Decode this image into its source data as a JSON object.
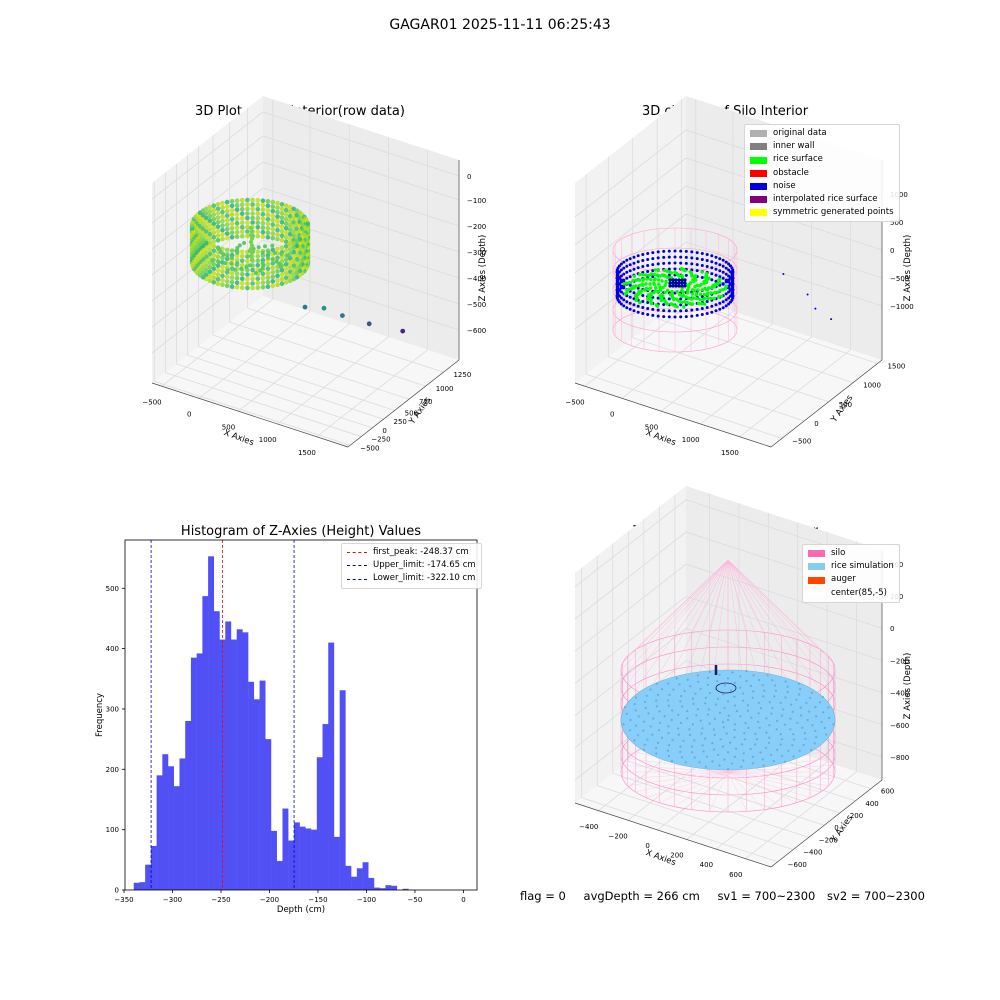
{
  "suptitle": "GAGAR01 2025-11-11 06:25:43",
  "colors": {
    "hist_bar": "#5050f5",
    "peak_line": "#ff0000",
    "limit_line": "#0000cc",
    "silo": "#ff69b4",
    "rice_sim": "#87cefa",
    "auger": "#ff4500",
    "rice_surface": "#00ff00",
    "noise": "#0000dd",
    "viridis_low": "#440154",
    "viridis_mid": "#21918c",
    "viridis_high": "#fde725"
  },
  "footer": {
    "flag": "flag = 0",
    "avg_depth": "avgDepth = 266 cm",
    "sv1": "sv1 = 700~2300",
    "sv2": "sv2 = 700~2300"
  },
  "chart_data": [
    {
      "type": "scatter",
      "projection": "3d",
      "title": "3D Plot of Silo Interior(row data)",
      "xlabel": "X Axies",
      "ylabel": "Y Axies",
      "zlabel": "Z Axies (Depth)",
      "xticks": [
        "−500",
        "0",
        "500",
        "1000",
        "1500"
      ],
      "yticks": [
        "−500",
        "−250",
        "0",
        "250",
        "500",
        "750",
        "1000",
        "1250"
      ],
      "zticks": [
        "0",
        "−100",
        "−200",
        "−300",
        "−400",
        "−500",
        "−600"
      ],
      "xlim": [
        -650,
        1850
      ],
      "ylim": [
        -600,
        1400
      ],
      "zlim": [
        -650,
        30
      ],
      "colormap": "viridis",
      "outlier_points": [
        {
          "x": 700,
          "y": 250,
          "z": -400
        },
        {
          "x": 850,
          "y": 380,
          "z": -410
        },
        {
          "x": 1000,
          "y": 500,
          "z": -440
        },
        {
          "x": 1200,
          "y": 700,
          "z": -480
        },
        {
          "x": 1450,
          "y": 950,
          "z": -520
        }
      ]
    },
    {
      "type": "scatter",
      "projection": "3d",
      "title": "3D classify of Silo Interior",
      "xlabel": "X Axies",
      "ylabel": "Y Axies",
      "zlabel": "Z Axies (Depth)",
      "xticks": [
        "−500",
        "0",
        "500",
        "1000",
        "1500"
      ],
      "yticks": [
        "−500",
        "0",
        "500",
        "1000",
        "1500"
      ],
      "zticks": [
        "1000",
        "500",
        "0",
        "−500",
        "−1000"
      ],
      "xlim": [
        -650,
        1850
      ],
      "ylim": [
        -700,
        1700
      ],
      "zlim": [
        -1300,
        1300
      ],
      "legend": [
        {
          "label": "original data",
          "color": "#b0b0b0"
        },
        {
          "label": "inner wall",
          "color": "#808080"
        },
        {
          "label": "rice surface",
          "color": "#00ff00"
        },
        {
          "label": "obstacle",
          "color": "#ff0000"
        },
        {
          "label": "noise",
          "color": "#0000dd"
        },
        {
          "label": "interpolated rice surface",
          "color": "#800080"
        },
        {
          "label": "symmetric generated points",
          "color": "#ffff00"
        }
      ],
      "legend_position": "upper-right",
      "outlier_points": [
        {
          "x": 1350,
          "y": 700,
          "z": 1180
        },
        {
          "x": 1300,
          "y": 500,
          "z": 200
        },
        {
          "x": 1550,
          "y": 600,
          "z": -30
        },
        {
          "x": 1650,
          "y": 600,
          "z": -180
        },
        {
          "x": 1850,
          "y": 600,
          "z": -250
        }
      ]
    },
    {
      "type": "bar",
      "title": "Histogram of Z-Axies (Height) Values",
      "xlabel": "Depth (cm)",
      "ylabel": "Frequency",
      "xlim": [
        -349,
        14
      ],
      "ylim": [
        0,
        580
      ],
      "xticks": [
        -350,
        -300,
        -250,
        -200,
        -150,
        -100,
        -50,
        0
      ],
      "xtick_labels": [
        "−350",
        "−300",
        "−250",
        "−200",
        "−150",
        "−100",
        "−50",
        "0"
      ],
      "yticks": [
        0,
        100,
        200,
        300,
        400,
        500
      ],
      "bin_start": -340,
      "bin_width": 5.9,
      "values": [
        12,
        13,
        42,
        73,
        190,
        225,
        205,
        172,
        218,
        280,
        385,
        392,
        487,
        553,
        462,
        415,
        445,
        415,
        432,
        427,
        345,
        316,
        347,
        250,
        98,
        48,
        135,
        82,
        112,
        105,
        102,
        100,
        220,
        275,
        410,
        88,
        331,
        40,
        22,
        36,
        46,
        20,
        4,
        3,
        8,
        7,
        0,
        2
      ],
      "lines": [
        {
          "label": "first_peak: -248.37 cm",
          "x": -248.37,
          "color": "#ff0000"
        },
        {
          "label": "Upper_limit: -174.65 cm",
          "x": -174.65,
          "color": "#0000cc"
        },
        {
          "label": "Lower_limit: -322.10 cm",
          "x": -322.1,
          "color": "#0000cc"
        }
      ],
      "legend_position": "upper-right"
    },
    {
      "type": "scatter",
      "projection": "3d",
      "title": "3D simulation of Silo Interior",
      "xlabel": "X Axies",
      "ylabel": "Y Axies",
      "zlabel": "Z Axies (Depth)",
      "xticks": [
        "−400",
        "−200",
        "0",
        "200",
        "400",
        "600"
      ],
      "yticks": [
        "−600",
        "−400",
        "−200",
        "0",
        "200",
        "400",
        "600"
      ],
      "zticks": [
        "400",
        "200",
        "0",
        "−200",
        "−400",
        "−600",
        "−800"
      ],
      "xlim": [
        -560,
        760
      ],
      "ylim": [
        -680,
        740
      ],
      "zlim": [
        -950,
        480
      ],
      "legend": [
        {
          "label": "silo",
          "color": "#ff69b4"
        },
        {
          "label": "rice simulation",
          "color": "#87ceeb"
        },
        {
          "label": "auger",
          "color": "#ff4500"
        },
        {
          "label": "center(85,-5)",
          "color": "#ffffff"
        }
      ],
      "legend_position": "upper-right"
    }
  ]
}
